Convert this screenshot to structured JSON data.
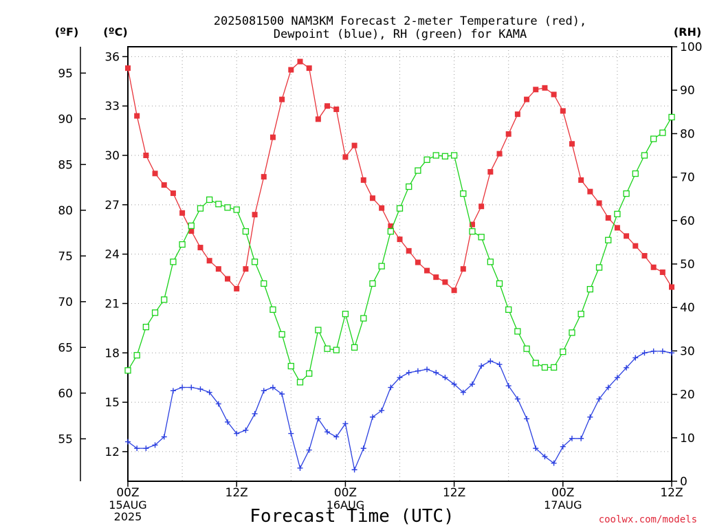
{
  "colors": {
    "temperature": "#e8333a",
    "dewpoint": "#2a3fe0",
    "rh": "#19d219",
    "grid": "#9a9a9a",
    "credit": "#e0283a"
  },
  "chart_data": {
    "type": "line",
    "title_line1": "2025081500 NAM3KM Forecast 2-meter Temperature (red),",
    "title_line2": "Dewpoint (blue), RH (green) for KAMA",
    "xlabel": "Forecast Time (UTC)",
    "credit": "coolwx.com/models",
    "unit_f": "(ºF)",
    "unit_c": "(ºC)",
    "unit_rh": "(RH)",
    "x_ticks": [
      {
        "hour": 0,
        "label": "00Z",
        "sub1": "15AUG",
        "sub2": "2025"
      },
      {
        "hour": 12,
        "label": "12Z",
        "sub1": "",
        "sub2": ""
      },
      {
        "hour": 24,
        "label": "00Z",
        "sub1": "16AUG",
        "sub2": ""
      },
      {
        "hour": 36,
        "label": "12Z",
        "sub1": "",
        "sub2": ""
      },
      {
        "hour": 48,
        "label": "00Z",
        "sub1": "17AUG",
        "sub2": ""
      },
      {
        "hour": 60,
        "label": "12Z",
        "sub1": "",
        "sub2": ""
      }
    ],
    "xlim": [
      0,
      60
    ],
    "ylim_c": [
      10.2,
      36.6
    ],
    "ylim_rh": [
      0,
      100
    ],
    "y_ticks_c": [
      12,
      15,
      18,
      21,
      24,
      27,
      30,
      33,
      36
    ],
    "y_ticks_f": [
      55,
      60,
      65,
      70,
      75,
      80,
      85,
      90,
      95
    ],
    "y_ticks_rh": [
      0,
      10,
      20,
      30,
      40,
      50,
      60,
      70,
      80,
      90,
      100
    ],
    "grid": true,
    "x": [
      0,
      1,
      2,
      3,
      4,
      5,
      6,
      7,
      8,
      9,
      10,
      11,
      12,
      13,
      14,
      15,
      16,
      17,
      18,
      19,
      20,
      21,
      22,
      23,
      24,
      25,
      26,
      27,
      28,
      29,
      30,
      31,
      32,
      33,
      34,
      35,
      36,
      37,
      38,
      39,
      40,
      41,
      42,
      43,
      44,
      45,
      46,
      47,
      48,
      49,
      50,
      51,
      52,
      53,
      54,
      55,
      56,
      57,
      58,
      59,
      60
    ],
    "series": [
      {
        "name": "Temperature",
        "axis": "c",
        "marker": "filled-square",
        "values": [
          35.3,
          32.4,
          30.0,
          28.9,
          28.2,
          27.7,
          26.5,
          25.4,
          24.4,
          23.6,
          23.1,
          22.5,
          21.9,
          23.1,
          26.4,
          28.7,
          31.1,
          33.4,
          35.2,
          35.7,
          35.3,
          32.2,
          33.0,
          32.8,
          29.9,
          30.6,
          28.5,
          27.4,
          26.8,
          25.7,
          24.9,
          24.2,
          23.5,
          23.0,
          22.6,
          22.3,
          21.8,
          23.1,
          25.8,
          26.9,
          29.0,
          30.1,
          31.3,
          32.5,
          33.4,
          34.0,
          34.1,
          33.7,
          32.7,
          30.7,
          28.5,
          27.8,
          27.1,
          26.2,
          25.6,
          25.1,
          24.5,
          23.9,
          23.2,
          22.9,
          22.0
        ]
      },
      {
        "name": "Dewpoint",
        "axis": "c",
        "marker": "plus",
        "values": [
          12.6,
          12.2,
          12.2,
          12.4,
          12.9,
          15.7,
          15.9,
          15.9,
          15.8,
          15.6,
          14.9,
          13.8,
          13.1,
          13.3,
          14.3,
          15.7,
          15.9,
          15.5,
          13.1,
          11.0,
          12.1,
          14.0,
          13.2,
          12.9,
          13.7,
          10.9,
          12.2,
          14.1,
          14.5,
          15.9,
          16.5,
          16.8,
          16.9,
          17.0,
          16.8,
          16.5,
          16.1,
          15.6,
          16.1,
          17.2,
          17.5,
          17.3,
          16.0,
          15.2,
          14.0,
          12.2,
          11.7,
          11.3,
          12.3,
          12.8,
          12.8,
          14.1,
          15.2,
          15.9,
          16.5,
          17.1,
          17.7,
          18.0,
          18.1,
          18.1,
          18.0
        ]
      },
      {
        "name": "RH",
        "axis": "rh",
        "marker": "open-square",
        "values": [
          25.5,
          29.0,
          35.5,
          38.8,
          41.8,
          50.5,
          54.5,
          58.8,
          62.8,
          64.8,
          63.8,
          63.0,
          62.5,
          57.5,
          50.5,
          45.5,
          39.5,
          33.8,
          26.5,
          22.8,
          24.8,
          34.8,
          30.5,
          30.2,
          38.5,
          30.8,
          37.5,
          45.5,
          49.5,
          57.5,
          62.8,
          67.8,
          71.5,
          74.0,
          75.0,
          74.8,
          75.0,
          66.2,
          57.5,
          56.2,
          50.5,
          45.5,
          39.5,
          34.5,
          30.5,
          27.2,
          26.2,
          26.2,
          29.8,
          34.2,
          38.5,
          44.2,
          49.2,
          55.5,
          61.5,
          66.2,
          70.8,
          75.0,
          78.8,
          80.2,
          83.8
        ]
      }
    ]
  }
}
